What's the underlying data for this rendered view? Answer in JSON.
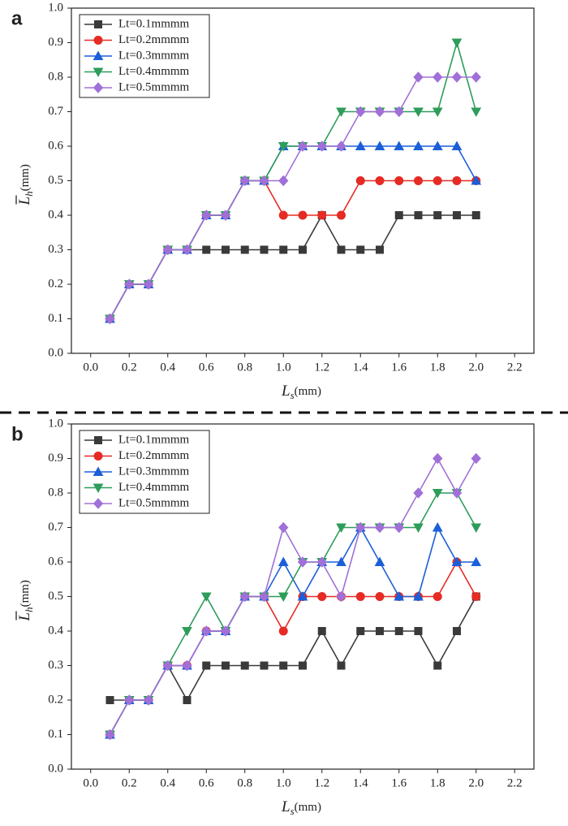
{
  "chart_data": [
    {
      "type": "line",
      "panel": "a",
      "x": [
        0.1,
        0.2,
        0.3,
        0.4,
        0.5,
        0.6,
        0.7,
        0.8,
        0.9,
        1.0,
        1.1,
        1.2,
        1.3,
        1.4,
        1.5,
        1.6,
        1.7,
        1.8,
        1.9,
        2.0
      ],
      "series": [
        {
          "name": "Lt=0.1mmmm",
          "color": "#3a3a3a",
          "marker": "square",
          "values": [
            0.1,
            0.2,
            0.2,
            0.3,
            0.3,
            0.3,
            0.3,
            0.3,
            0.3,
            0.3,
            0.3,
            0.4,
            0.3,
            0.3,
            0.3,
            0.4,
            0.4,
            0.4,
            0.4,
            0.4
          ]
        },
        {
          "name": "Lt=0.2mmmm",
          "color": "#e52b24",
          "marker": "circle",
          "values": [
            0.1,
            0.2,
            0.2,
            0.3,
            0.3,
            0.4,
            0.4,
            0.5,
            0.5,
            0.4,
            0.4,
            0.4,
            0.4,
            0.5,
            0.5,
            0.5,
            0.5,
            0.5,
            0.5,
            0.5
          ]
        },
        {
          "name": "Lt=0.3mmmm",
          "color": "#1b5fd8",
          "marker": "triangle-up",
          "values": [
            0.1,
            0.2,
            0.2,
            0.3,
            0.3,
            0.4,
            0.4,
            0.5,
            0.5,
            0.6,
            0.6,
            0.6,
            0.6,
            0.6,
            0.6,
            0.6,
            0.6,
            0.6,
            0.6,
            0.5
          ]
        },
        {
          "name": "Lt=0.4mmmm",
          "color": "#2e9c5a",
          "marker": "triangle-down",
          "values": [
            0.1,
            0.2,
            0.2,
            0.3,
            0.3,
            0.4,
            0.4,
            0.5,
            0.5,
            0.6,
            0.6,
            0.6,
            0.7,
            0.7,
            0.7,
            0.7,
            0.7,
            0.7,
            0.9,
            0.7
          ]
        },
        {
          "name": "Lt=0.5mmmm",
          "color": "#a070d8",
          "marker": "diamond",
          "values": [
            0.1,
            0.2,
            0.2,
            0.3,
            0.3,
            0.4,
            0.4,
            0.5,
            0.5,
            0.5,
            0.6,
            0.6,
            0.6,
            0.7,
            0.7,
            0.7,
            0.8,
            0.8,
            0.8,
            0.8
          ]
        }
      ],
      "xlim": [
        -0.1,
        2.3
      ],
      "ylim": [
        0,
        1
      ],
      "xticks": [
        {
          "value": 0,
          "label": "0.0"
        },
        {
          "value": 0.2,
          "label": "0.2"
        },
        {
          "value": 0.4,
          "label": "0.4"
        },
        {
          "value": 0.6,
          "label": "0.6"
        },
        {
          "value": 0.8,
          "label": "0.8"
        },
        {
          "value": 1,
          "label": "1.0"
        },
        {
          "value": 1.2,
          "label": "1.2"
        },
        {
          "value": 1.4,
          "label": "1.4"
        },
        {
          "value": 1.6,
          "label": "1.6"
        },
        {
          "value": 1.8,
          "label": "1.8"
        },
        {
          "value": 2,
          "label": "2.0"
        },
        {
          "value": 2.2,
          "label": "2.2"
        }
      ],
      "yticks": [
        {
          "value": 0,
          "label": "0.0"
        },
        0.1,
        0.2,
        0.3,
        0.4,
        0.5,
        0.6,
        0.7,
        0.8,
        0.9,
        {
          "value": 1,
          "label": "1.0"
        }
      ],
      "xlabel": "L",
      "xlabel_sub": "s",
      "xlabel_unit": "(mm)",
      "ylabel": "L",
      "ylabel_sub": "h",
      "ylabel_unit": "(mm)",
      "legend": "upper left"
    },
    {
      "type": "line",
      "panel": "b",
      "x": [
        0.1,
        0.2,
        0.3,
        0.4,
        0.5,
        0.6,
        0.7,
        0.8,
        0.9,
        1.0,
        1.1,
        1.2,
        1.3,
        1.4,
        1.5,
        1.6,
        1.7,
        1.8,
        1.9,
        2.0
      ],
      "series": [
        {
          "name": "Lt=0.1mmmm",
          "color": "#3a3a3a",
          "marker": "square",
          "values": [
            0.2,
            0.2,
            0.2,
            0.3,
            0.2,
            0.3,
            0.3,
            0.3,
            0.3,
            0.3,
            0.3,
            0.4,
            0.3,
            0.4,
            0.4,
            0.4,
            0.4,
            0.3,
            0.4,
            0.5
          ]
        },
        {
          "name": "Lt=0.2mmmm",
          "color": "#e52b24",
          "marker": "circle",
          "values": [
            0.1,
            0.2,
            0.2,
            0.3,
            0.3,
            0.4,
            0.4,
            0.5,
            0.5,
            0.4,
            0.5,
            0.5,
            0.5,
            0.5,
            0.5,
            0.5,
            0.5,
            0.5,
            0.6,
            0.5
          ]
        },
        {
          "name": "Lt=0.3mmmm",
          "color": "#1b5fd8",
          "marker": "triangle-up",
          "values": [
            0.1,
            0.2,
            0.2,
            0.3,
            0.3,
            0.4,
            0.4,
            0.5,
            0.5,
            0.6,
            0.5,
            0.6,
            0.6,
            0.7,
            0.6,
            0.5,
            0.5,
            0.7,
            0.6,
            0.6
          ]
        },
        {
          "name": "Lt=0.4mmmm",
          "color": "#2e9c5a",
          "marker": "triangle-down",
          "values": [
            0.1,
            0.2,
            0.2,
            0.3,
            0.4,
            0.5,
            0.4,
            0.5,
            0.5,
            0.5,
            0.6,
            0.6,
            0.7,
            0.7,
            0.7,
            0.7,
            0.7,
            0.8,
            0.8,
            0.7
          ]
        },
        {
          "name": "Lt=0.5mmmm",
          "color": "#a070d8",
          "marker": "diamond",
          "values": [
            0.1,
            0.2,
            0.2,
            0.3,
            0.3,
            0.4,
            0.4,
            0.5,
            0.5,
            0.7,
            0.6,
            0.6,
            0.5,
            0.7,
            0.7,
            0.7,
            0.8,
            0.9,
            0.8,
            0.9
          ]
        }
      ],
      "xlim": [
        -0.1,
        2.3
      ],
      "ylim": [
        0,
        1
      ],
      "xticks": [
        {
          "value": 0,
          "label": "0.0"
        },
        {
          "value": 0.2,
          "label": "0.2"
        },
        {
          "value": 0.4,
          "label": "0.4"
        },
        {
          "value": 0.6,
          "label": "0.6"
        },
        {
          "value": 0.8,
          "label": "0.8"
        },
        {
          "value": 1,
          "label": "1.0"
        },
        {
          "value": 1.2,
          "label": "1.2"
        },
        {
          "value": 1.4,
          "label": "1.4"
        },
        {
          "value": 1.6,
          "label": "1.6"
        },
        {
          "value": 1.8,
          "label": "1.8"
        },
        {
          "value": 2,
          "label": "2.0"
        },
        {
          "value": 2.2,
          "label": "2.2"
        }
      ],
      "yticks": [
        {
          "value": 0,
          "label": "0.0"
        },
        0.1,
        0.2,
        0.3,
        0.4,
        0.5,
        0.6,
        0.7,
        0.8,
        0.9,
        {
          "value": 1,
          "label": "1.0"
        }
      ],
      "xlabel": "L",
      "xlabel_sub": "s",
      "xlabel_unit": "(mm)",
      "ylabel": "L",
      "ylabel_sub": "h",
      "ylabel_unit": "(mm)",
      "legend": "upper left"
    }
  ]
}
